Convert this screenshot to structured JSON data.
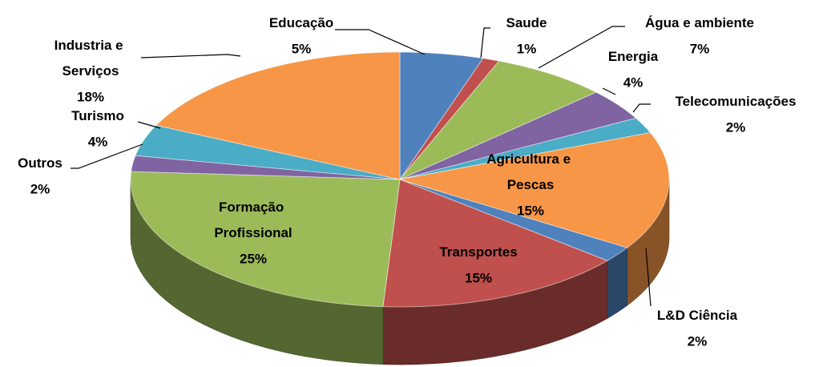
{
  "chart_data": {
    "type": "pie3d",
    "categories": [
      "Educação",
      "Saude",
      "Água e ambiente",
      "Energia",
      "Telecomunicações",
      "Agricultura e Pescas",
      "L&D Ciência",
      "Transportes",
      "Formação Profissional",
      "Outros",
      "Turismo",
      "Industria e Serviços"
    ],
    "values": [
      5,
      1,
      7,
      4,
      2,
      15,
      2,
      15,
      25,
      2,
      4,
      18
    ],
    "value_labels": [
      "5%",
      "1%",
      "7%",
      "4%",
      "2%",
      "15%",
      "2%",
      "15%",
      "25%",
      "2%",
      "4%",
      "18%"
    ],
    "colors": [
      "#4f81bd",
      "#c0504d",
      "#9bbb59",
      "#8064a2",
      "#4bacc6",
      "#f79646",
      "#4f81bd",
      "#c0504d",
      "#9bbb59",
      "#8064a2",
      "#4bacc6",
      "#f79646"
    ]
  }
}
